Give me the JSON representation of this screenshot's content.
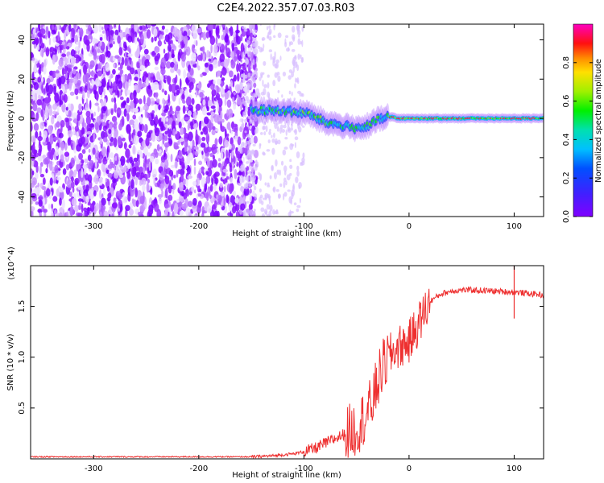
{
  "figure_title": "C2E4.2022.357.07.03.R03",
  "colors": {
    "snr_line": "#ee3030",
    "axis": "#000000"
  },
  "chart_data": [
    {
      "type": "heatmap",
      "title": "C2E4.2022.357.07.03.R03",
      "xlabel": "Height of straight line (km)",
      "ylabel": "Frequency (Hz)",
      "xlim": [
        -360,
        128
      ],
      "ylim": [
        -50,
        48
      ],
      "x_ticks": [
        -300,
        -200,
        -100,
        0,
        100
      ],
      "y_ticks": [
        -40,
        -20,
        0,
        20,
        40
      ],
      "x_tick_labels": [
        "-300",
        "-200",
        "-100",
        "0",
        "100"
      ],
      "y_tick_labels": [
        "-40",
        "-20",
        "0",
        "20",
        "40"
      ],
      "colorbar": {
        "label": "Normalized spectral amplitude",
        "range": [
          0,
          1
        ],
        "ticks": [
          0.0,
          0.2,
          0.4,
          0.6,
          0.8
        ],
        "tick_labels": [
          "0.0",
          "0.2",
          "0.4",
          "0.6",
          "0.8"
        ],
        "colormap": "rainbow (purple to magenta)"
      },
      "noise_region": {
        "x_from": -360,
        "x_to": -150
      },
      "ridge": {
        "x": [
          -150,
          -140,
          -130,
          -120,
          -110,
          -100,
          -90,
          -80,
          -70,
          -60,
          -50,
          -40,
          -30,
          -20,
          -10,
          0,
          50,
          100,
          128
        ],
        "freq": [
          4,
          4,
          4,
          4,
          3,
          3,
          1,
          -2,
          -3,
          -4,
          -5,
          -4,
          -1,
          1,
          0,
          0,
          0,
          0,
          0
        ]
      }
    },
    {
      "type": "line",
      "xlabel": "Height of straight line (km)",
      "ylabel": "SNR (10 * v/v)",
      "y_multiplier_label": "(x10^4)",
      "xlim": [
        -360,
        128
      ],
      "ylim": [
        0,
        1.9
      ],
      "x_ticks": [
        -300,
        -200,
        -100,
        0,
        100
      ],
      "y_ticks": [
        0.5,
        1.0,
        1.5
      ],
      "x_tick_labels": [
        "-300",
        "-200",
        "-100",
        "0",
        "100"
      ],
      "y_tick_labels": [
        "0.5",
        "1.0",
        "1.5"
      ],
      "series": [
        {
          "x": [
            -360,
            -300,
            -200,
            -150,
            -130,
            -110,
            -100,
            -90,
            -80,
            -70,
            -60,
            -50,
            -40,
            -35,
            -30,
            -25,
            -20,
            -15,
            -10,
            0,
            10,
            20,
            30,
            40,
            50,
            60,
            80,
            100,
            110,
            120,
            128
          ],
          "y": [
            0.02,
            0.02,
            0.02,
            0.02,
            0.03,
            0.05,
            0.07,
            0.1,
            0.15,
            0.2,
            0.25,
            0.3,
            0.45,
            0.55,
            0.75,
            0.9,
            1.0,
            1.05,
            1.1,
            1.15,
            1.35,
            1.55,
            1.62,
            1.65,
            1.66,
            1.66,
            1.65,
            1.64,
            1.63,
            1.62,
            1.61
          ]
        }
      ],
      "annotation": {
        "x": 100,
        "spike_y": 1.92,
        "dip_y": 1.38
      }
    }
  ]
}
